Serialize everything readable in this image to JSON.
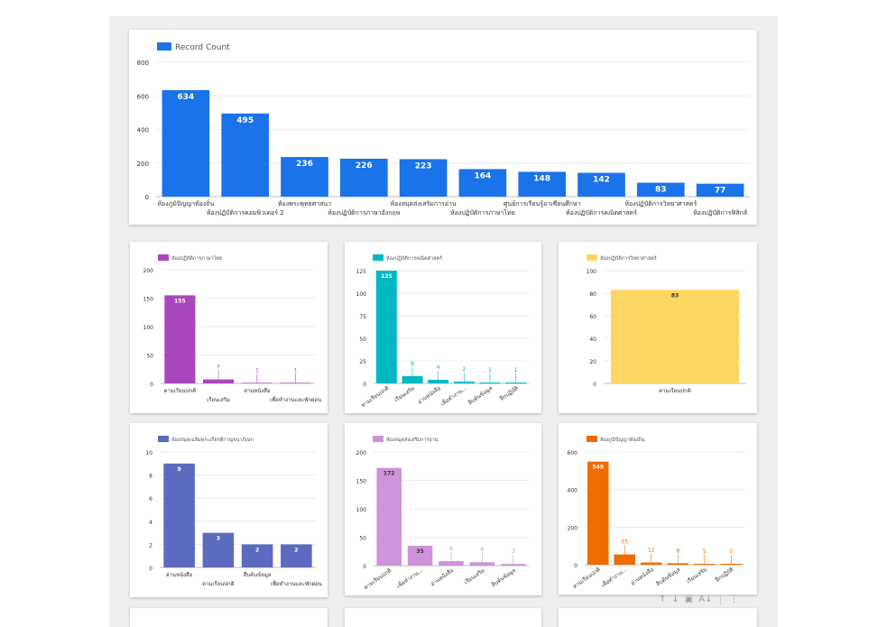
{
  "chart_data": [
    {
      "type": "bar",
      "categories": [
        "ห้องภูมิปัญญาท้องถิ่น",
        "ห้องปฏิบัติการคอมพิวเตอร์ 2",
        "ห้องพระพุทธศาสนา",
        "ห้องปฏิบัติการภาษาอังกฤษ",
        "ห้องสมุดส่งเสริมการอ่าน",
        "ห้องปฏิบัติการภาษาไทย",
        "ศูนย์การเรียนรู้อาเซียนศึกษา",
        "ห้องปฏิบัติการคณิตศาสตร์",
        "ห้องปฏิบัติการวิทยาศาสตร์",
        "ห้องปฏิบัติการฟิสิกส์"
      ],
      "values": [
        634,
        495,
        236,
        226,
        223,
        164,
        148,
        142,
        83,
        77
      ],
      "series_name": "Record Count",
      "color": "#1a73e8",
      "ylim": [
        0,
        800
      ],
      "yticks": [
        0,
        200,
        400,
        600,
        800
      ],
      "legend_position": "top-left",
      "grid": true
    },
    {
      "type": "bar",
      "categories": [
        "ตามเรียนปกติ",
        "เรียนเสริม",
        "อ่านหนังสือ",
        "เพื่อทำงานและพักผ่อน"
      ],
      "values": [
        155,
        7,
        1,
        1
      ],
      "series_name": "ห้องปฏิบัติการภาษาไทย",
      "color": "#ab47bc",
      "ylim": [
        0,
        200
      ],
      "yticks": [
        0,
        50,
        100,
        150,
        200
      ],
      "legend_position": "top-left",
      "grid": true
    },
    {
      "type": "bar",
      "categories": [
        "ตามเรียนปกติ",
        "เรียนเสริม",
        "อ่านหนังสือ",
        "เพื่อทำงาน...",
        "สืบค้นข้อมูล",
        "ฝึกปฏิบัติ"
      ],
      "values": [
        125,
        8,
        4,
        2,
        1,
        1
      ],
      "series_name": "ห้องปฏิบัติการคณิตศาสตร์",
      "color": "#00b8c4",
      "ylim": [
        0,
        125
      ],
      "yticks": [
        0,
        25,
        50,
        75,
        100,
        125
      ],
      "legend_position": "top-left",
      "grid": true
    },
    {
      "type": "bar",
      "categories": [
        "ตามเรียนปกติ"
      ],
      "values": [
        83
      ],
      "series_name": "ห้องปฏิบัติการวิทยาศาสตร์",
      "color": "#fdd663",
      "ylim": [
        0,
        100
      ],
      "yticks": [
        0,
        20,
        40,
        60,
        80,
        100
      ],
      "legend_position": "top-left",
      "grid": true
    },
    {
      "type": "bar",
      "categories": [
        "อ่านหนังสือ",
        "ตามเรียนปกติ",
        "สืบค้นข้อมูล",
        "เพื่อทำงานและพักผ่อน"
      ],
      "values": [
        9,
        3,
        2,
        2
      ],
      "series_name": "ห้องสมุดเฉลิมพระเกียรติกาญจนาภิเษก",
      "color": "#5c6bc0",
      "ylim": [
        0,
        10
      ],
      "yticks": [
        0,
        2,
        4,
        6,
        8,
        10
      ],
      "legend_position": "top-left",
      "grid": true
    },
    {
      "type": "bar",
      "categories": [
        "ตามเรียนปกติ",
        "เพื่อทำงาน...",
        "อ่านหนังสือ",
        "เรียนเสริม",
        "สืบค้นข้อมูล"
      ],
      "values": [
        172,
        35,
        8,
        6,
        3
      ],
      "series_name": "ห้องสมุดส่งเสริมการอ่าน",
      "color": "#ce93d8",
      "ylim": [
        0,
        200
      ],
      "yticks": [
        0,
        50,
        100,
        150,
        200
      ],
      "legend_position": "top-left",
      "grid": true
    },
    {
      "type": "bar",
      "categories": [
        "ตามเรียนปกติ",
        "เพื่อทำงาน...",
        "อ่านหนังสือ",
        "สืบค้นข้อมูล",
        "เรียนเสริม",
        "ฝึกปฏิบัติ"
      ],
      "values": [
        549,
        55,
        12,
        8,
        5,
        5
      ],
      "series_name": "ห้องภูมิปัญญาท้องถิ่น",
      "color": "#ef6c00",
      "ylim": [
        0,
        600
      ],
      "yticks": [
        0,
        200,
        400,
        600
      ],
      "legend_position": "top-left",
      "grid": true
    }
  ],
  "toolbar": {
    "icons": [
      "arrow-up-icon",
      "arrow-down-icon",
      "insert-chart-icon",
      "sort-icon",
      "more-vert-icon"
    ],
    "glyphs": [
      "↑",
      "↓",
      "▣",
      "A↓",
      "⋮"
    ]
  }
}
